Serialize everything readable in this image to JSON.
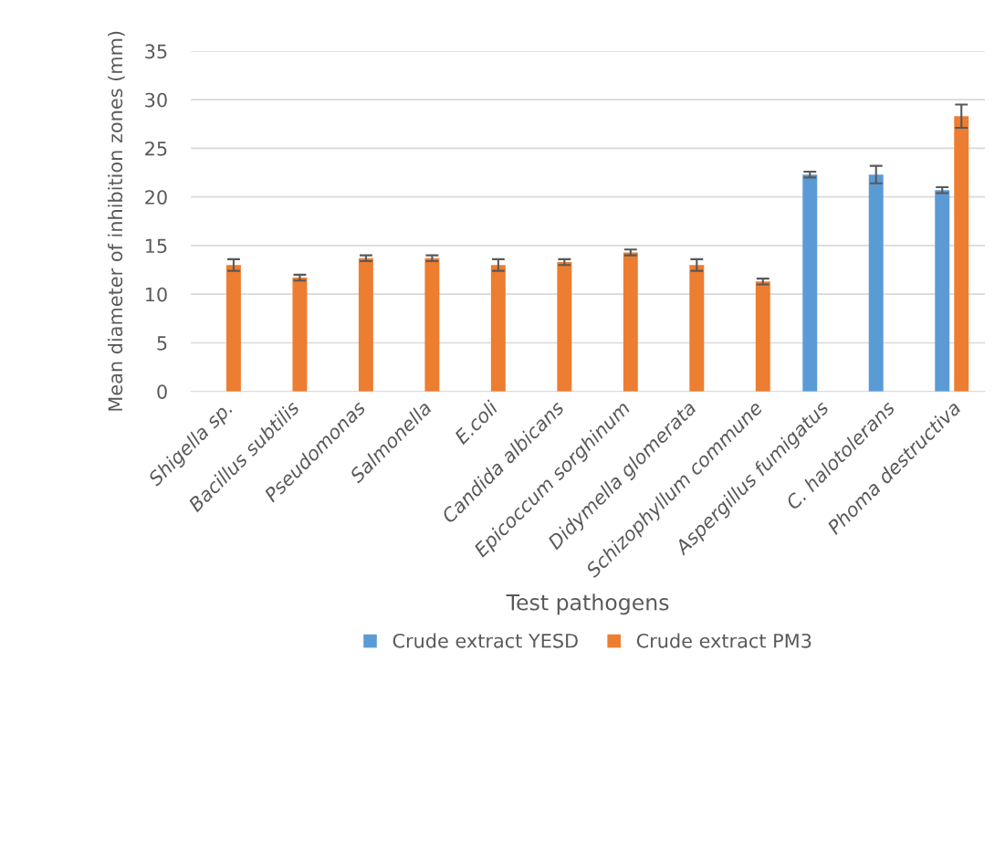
{
  "chart_data": {
    "type": "bar",
    "xlabel": "Test pathogens",
    "ylabel": "Mean diameter of inhibition zones (mm)",
    "categories": [
      "Shigella sp.",
      "Bacillus subtilis",
      "Pseudomonas",
      "Salmonella",
      "E.coli",
      "Candida albicans",
      "Epicoccum sorghinum",
      "Didymella glomerata",
      "Schizophyllum commune",
      "Aspergillus fumigatus",
      "C. halotolerans",
      "Phoma destructiva"
    ],
    "series": [
      {
        "name": "Crude extract YESD",
        "color": "#5b9bd5",
        "values": [
          0,
          0,
          0,
          0,
          0,
          0,
          0,
          0,
          0,
          22.3,
          22.3,
          20.7
        ],
        "errors": [
          null,
          null,
          null,
          null,
          null,
          null,
          null,
          null,
          null,
          0.3,
          0.9,
          0.3
        ]
      },
      {
        "name": "Crude extract PM3",
        "color": "#ed7d31",
        "values": [
          13,
          11.7,
          13.7,
          13.7,
          13,
          13.3,
          14.3,
          13,
          11.3,
          0,
          0,
          28.3
        ],
        "errors": [
          0.6,
          0.3,
          0.3,
          0.3,
          0.6,
          0.3,
          0.3,
          0.6,
          0.3,
          null,
          null,
          1.2
        ]
      }
    ],
    "ylim": [
      0,
      35
    ],
    "yticks": [
      0,
      5,
      10,
      15,
      20,
      25,
      30,
      35
    ],
    "grid": "y",
    "legend": "bottom"
  }
}
